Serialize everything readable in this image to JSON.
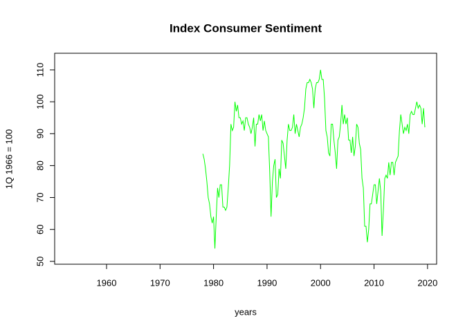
{
  "chart_data": {
    "type": "line",
    "title": "Index Consumer Sentiment",
    "xlabel": "years",
    "ylabel": "1Q 1966 = 100",
    "xlim": [
      1950.3,
      2021.7
    ],
    "ylim": [
      49.1,
      115.2
    ],
    "xticks": [
      1960,
      1970,
      1980,
      1990,
      2000,
      2010,
      2020
    ],
    "yticks": [
      50,
      60,
      70,
      80,
      90,
      100,
      110
    ],
    "x": [
      1978,
      1978.25,
      1978.5,
      1978.75,
      1979,
      1979.25,
      1979.5,
      1979.75,
      1980,
      1980.25,
      1980.5,
      1980.75,
      1981,
      1981.25,
      1981.5,
      1981.75,
      1982,
      1982.25,
      1982.5,
      1982.75,
      1983,
      1983.25,
      1983.5,
      1983.75,
      1984,
      1984.25,
      1984.5,
      1984.75,
      1985,
      1985.25,
      1985.5,
      1985.75,
      1986,
      1986.25,
      1986.5,
      1986.75,
      1987,
      1987.25,
      1987.5,
      1987.75,
      1988,
      1988.25,
      1988.5,
      1988.75,
      1989,
      1989.25,
      1989.5,
      1989.75,
      1990,
      1990.25,
      1990.5,
      1990.75,
      1991,
      1991.25,
      1991.5,
      1991.75,
      1992,
      1992.25,
      1992.5,
      1992.75,
      1993,
      1993.25,
      1993.5,
      1993.75,
      1994,
      1994.25,
      1994.5,
      1994.75,
      1995,
      1995.25,
      1995.5,
      1995.75,
      1996,
      1996.25,
      1996.5,
      1996.75,
      1997,
      1997.25,
      1997.5,
      1997.75,
      1998,
      1998.25,
      1998.5,
      1998.75,
      1999,
      1999.25,
      1999.5,
      1999.75,
      2000,
      2000.25,
      2000.5,
      2000.75,
      2001,
      2001.25,
      2001.5,
      2001.75,
      2002,
      2002.25,
      2002.5,
      2002.75,
      2003,
      2003.25,
      2003.5,
      2003.75,
      2004,
      2004.25,
      2004.5,
      2004.75,
      2005,
      2005.25,
      2005.5,
      2005.75,
      2006,
      2006.25,
      2006.5,
      2006.75,
      2007,
      2007.25,
      2007.5,
      2007.75,
      2008,
      2008.25,
      2008.5,
      2008.75,
      2009,
      2009.25,
      2009.5,
      2009.75,
      2010,
      2010.25,
      2010.5,
      2010.75,
      2011,
      2011.25,
      2011.5,
      2011.75,
      2012,
      2012.25,
      2012.5,
      2012.75,
      2013,
      2013.25,
      2013.5,
      2013.75,
      2014,
      2014.25,
      2014.5,
      2014.75,
      2015,
      2015.25,
      2015.5,
      2015.75,
      2016,
      2016.25,
      2016.5,
      2016.75,
      2017,
      2017.25,
      2017.5,
      2017.75,
      2018,
      2018.25,
      2018.5,
      2018.75,
      2019,
      2019.25,
      2019.5
    ],
    "series": [
      {
        "color": "#00ff00",
        "values": [
          83.7,
          82,
          79,
          75,
          70,
          68,
          64,
          62,
          64,
          54,
          64,
          73,
          70,
          74,
          74,
          67,
          67,
          66,
          67,
          73,
          80,
          93,
          91,
          92,
          100,
          97,
          99,
          95,
          95,
          93,
          94,
          91,
          95,
          95,
          93,
          92,
          90,
          92,
          95,
          86,
          93,
          93,
          96,
          94,
          96,
          91,
          94,
          91,
          90,
          89,
          78,
          64,
          75,
          80,
          82,
          70,
          71,
          79,
          76,
          88,
          87,
          83,
          79,
          88,
          93,
          91,
          91,
          92,
          96,
          90,
          93,
          91,
          89,
          92,
          93,
          95,
          98,
          104,
          106,
          106,
          107,
          106,
          104,
          98,
          104,
          106,
          106,
          107,
          110,
          107,
          107,
          101,
          91,
          89,
          84,
          83,
          93,
          93,
          88,
          84,
          79,
          88,
          89,
          93,
          99,
          93,
          96,
          93,
          95,
          88,
          88,
          84,
          89,
          83,
          86,
          93,
          92,
          87,
          85,
          76,
          73,
          61,
          61,
          56,
          60,
          68,
          68,
          71,
          74,
          74,
          68,
          72,
          76,
          72,
          58,
          66,
          76,
          77,
          76,
          81,
          77,
          81,
          81,
          77,
          81,
          82,
          83,
          91,
          96,
          93,
          90,
          92,
          91,
          93,
          90,
          96,
          97,
          96,
          96,
          98,
          100,
          98,
          99,
          98,
          93,
          98,
          92
        ]
      }
    ]
  }
}
